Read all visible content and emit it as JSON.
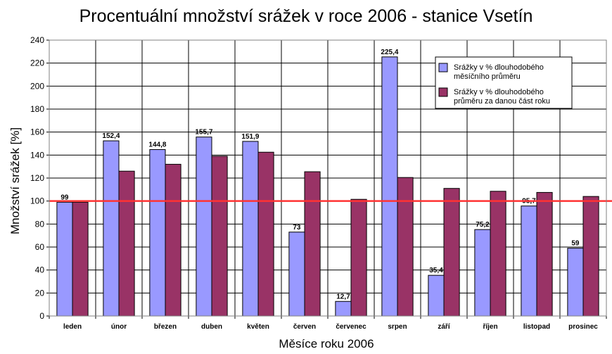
{
  "chart_data": {
    "type": "bar",
    "title": "Procentuální množství srážek v roce 2006 - stanice Vsetín",
    "xlabel": "Měsíce roku 2006",
    "ylabel": "Množství srážek [%]",
    "ylim": [
      0,
      240
    ],
    "yticks": [
      0,
      20,
      40,
      60,
      80,
      100,
      120,
      140,
      160,
      180,
      200,
      220,
      240
    ],
    "grid": true,
    "reference_line": {
      "value": 100,
      "color": "#ff3333"
    },
    "legend_position": "top-right",
    "categories": [
      "leden",
      "únor",
      "březen",
      "duben",
      "květen",
      "červen",
      "červenec",
      "srpen",
      "září",
      "říjen",
      "listopad",
      "prosinec"
    ],
    "series": [
      {
        "name": "Srážky v % dlouhodobého měsíčního průměru",
        "legend_lines": [
          "Srážky v % dlouhodobého",
          "měsíčního průměru"
        ],
        "color": "#9999ff",
        "values": [
          99,
          152.4,
          144.8,
          155.7,
          151.9,
          73,
          12.7,
          225.4,
          35.4,
          75.2,
          95.7,
          59
        ],
        "labels": [
          "99",
          "152,4",
          "144,8",
          "155,7",
          "151,9",
          "73",
          "12,7",
          "225,4",
          "35,4",
          "75,2",
          "95,7",
          "59"
        ]
      },
      {
        "name": "Srážky v % dlouhodobého průměru za danou část roku",
        "legend_lines": [
          "Srážky v % dlouhodobého",
          "průměru za danou část roku"
        ],
        "color": "#993366",
        "values": [
          99,
          126,
          132,
          139,
          142.5,
          125.5,
          101.5,
          120.5,
          111,
          108.5,
          107.5,
          104
        ]
      }
    ]
  }
}
